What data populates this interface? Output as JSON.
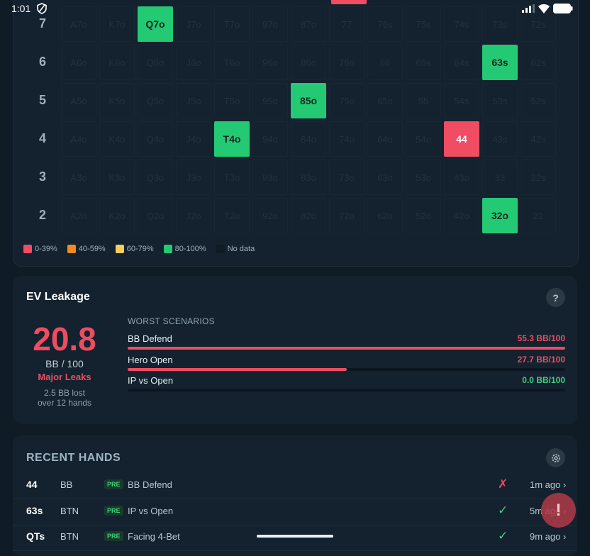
{
  "status_bar": {
    "time": "1:01",
    "icons": [
      "shield-icon",
      "signal-icon",
      "wifi-icon",
      "battery-icon"
    ]
  },
  "grid": {
    "rows": [
      {
        "rank": "7",
        "hands": [
          "A7o",
          "K7o",
          "Q7o",
          "J7o",
          "T7o",
          "97o",
          "87o",
          "77",
          "76s",
          "75s",
          "74s",
          "73s",
          "72s"
        ]
      },
      {
        "rank": "6",
        "hands": [
          "A6o",
          "K6o",
          "Q6o",
          "J6o",
          "T6o",
          "96o",
          "86o",
          "76o",
          "66",
          "65s",
          "64s",
          "63s",
          "62s"
        ]
      },
      {
        "rank": "5",
        "hands": [
          "A5o",
          "K5o",
          "Q5o",
          "J5o",
          "T5o",
          "95o",
          "85o",
          "75o",
          "65o",
          "55",
          "54s",
          "53s",
          "52s"
        ]
      },
      {
        "rank": "4",
        "hands": [
          "A4o",
          "K4o",
          "Q4o",
          "J4o",
          "T4o",
          "94o",
          "84o",
          "74o",
          "64o",
          "54o",
          "44",
          "43s",
          "42s"
        ]
      },
      {
        "rank": "3",
        "hands": [
          "A3o",
          "K3o",
          "Q3o",
          "J3o",
          "T3o",
          "93o",
          "83o",
          "73o",
          "63o",
          "53o",
          "43o",
          "33",
          "32s"
        ]
      },
      {
        "rank": "2",
        "hands": [
          "A2o",
          "K2o",
          "Q2o",
          "J2o",
          "T2o",
          "92o",
          "82o",
          "72o",
          "62o",
          "52o",
          "42o",
          "32o",
          "22"
        ]
      }
    ],
    "highlights": [
      {
        "row": 0,
        "col": 2,
        "color": "#24c974"
      },
      {
        "row": 1,
        "col": 11,
        "color": "#24c974"
      },
      {
        "row": 2,
        "col": 6,
        "color": "#24c974"
      },
      {
        "row": 3,
        "col": 4,
        "color": "#24c974"
      },
      {
        "row": 3,
        "col": 10,
        "color": "#f04d63"
      },
      {
        "row": 5,
        "col": 11,
        "color": "#24c974"
      }
    ],
    "legend": [
      {
        "label": "0-39%",
        "color": "#f04d63"
      },
      {
        "label": "40-59%",
        "color": "#f28b1b"
      },
      {
        "label": "60-79%",
        "color": "#f7cf5a"
      },
      {
        "label": "80-100%",
        "color": "#24c974"
      },
      {
        "label": "No data",
        "color": "#0f1c26"
      }
    ]
  },
  "ev_leakage": {
    "title": "EV Leakage",
    "help_label": "?",
    "value": "20.8",
    "unit": "BB / 100",
    "status": "Major Leaks",
    "lost_line1": "2.5 BB lost",
    "lost_line2": "over 12 hands",
    "worst_title": "WORST SCENARIOS",
    "scenarios": [
      {
        "name": "BB Defend",
        "value": "55.3 BB/100",
        "fraction": 1.0,
        "color": "#ef4c61"
      },
      {
        "name": "Hero Open",
        "value": "27.7 BB/100",
        "fraction": 0.5,
        "color": "#ef4c61"
      },
      {
        "name": "IP vs Open",
        "value": "0.0 BB/100",
        "fraction": 0.0,
        "color": "#3ecf7e"
      }
    ]
  },
  "recent_hands": {
    "title": "RECENT HANDS",
    "rows": [
      {
        "hand": "44",
        "position": "BB",
        "tag": "PRE",
        "scenario": "BB Defend",
        "result": "✗",
        "result_color": "#ef4c61",
        "time": "1m ago ›"
      },
      {
        "hand": "63s",
        "position": "BTN",
        "tag": "PRE",
        "scenario": "IP vs Open",
        "result": "✓",
        "result_color": "#3ecf7e",
        "time": "5m ago ›"
      },
      {
        "hand": "QTs",
        "position": "BTN",
        "tag": "PRE",
        "scenario": "Facing 4-Bet",
        "result": "✓",
        "result_color": "#3ecf7e",
        "time": "9m ago ›"
      }
    ]
  },
  "fab": {
    "label": "!"
  }
}
